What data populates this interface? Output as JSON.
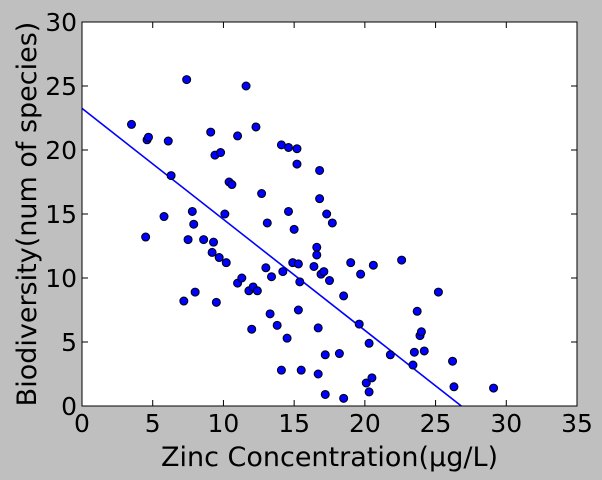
{
  "chart_data": {
    "type": "scatter",
    "title": "",
    "xlabel": "Zinc Concentration(µg/L)",
    "ylabel": "Biodiversity(num of species)",
    "xlim": [
      0,
      35
    ],
    "ylim": [
      0,
      30
    ],
    "xticks": [
      0,
      5,
      10,
      15,
      20,
      25,
      30,
      35
    ],
    "yticks": [
      0,
      5,
      10,
      15,
      20,
      25,
      30
    ],
    "grid": false,
    "point_color": "#0000ff",
    "line_color": "#0000ff",
    "background_color": "#bfbfbf",
    "plot_background": "#ffffff",
    "points": [
      [
        3.5,
        22.0
      ],
      [
        4.6,
        20.8
      ],
      [
        4.7,
        21.0
      ],
      [
        4.5,
        13.2
      ],
      [
        5.8,
        14.8
      ],
      [
        6.1,
        20.7
      ],
      [
        6.3,
        18.0
      ],
      [
        7.4,
        25.5
      ],
      [
        7.2,
        8.2
      ],
      [
        7.5,
        13.0
      ],
      [
        7.8,
        15.2
      ],
      [
        7.9,
        14.2
      ],
      [
        8.0,
        8.9
      ],
      [
        8.6,
        13.0
      ],
      [
        9.1,
        21.4
      ],
      [
        9.2,
        12.0
      ],
      [
        9.3,
        12.8
      ],
      [
        9.4,
        19.6
      ],
      [
        9.5,
        8.1
      ],
      [
        9.7,
        11.6
      ],
      [
        9.8,
        19.8
      ],
      [
        10.1,
        15.0
      ],
      [
        10.2,
        11.2
      ],
      [
        10.4,
        17.5
      ],
      [
        10.6,
        17.3
      ],
      [
        11.0,
        21.1
      ],
      [
        11.0,
        9.6
      ],
      [
        11.3,
        10.0
      ],
      [
        11.6,
        25.0
      ],
      [
        11.8,
        9.0
      ],
      [
        12.0,
        6.0
      ],
      [
        12.1,
        9.3
      ],
      [
        12.3,
        21.8
      ],
      [
        12.4,
        9.0
      ],
      [
        12.7,
        16.6
      ],
      [
        13.0,
        10.8
      ],
      [
        13.1,
        14.3
      ],
      [
        13.3,
        7.2
      ],
      [
        13.4,
        10.1
      ],
      [
        13.8,
        6.3
      ],
      [
        14.1,
        20.4
      ],
      [
        14.1,
        2.8
      ],
      [
        14.2,
        10.5
      ],
      [
        14.5,
        5.3
      ],
      [
        14.6,
        20.2
      ],
      [
        14.6,
        15.2
      ],
      [
        14.9,
        11.2
      ],
      [
        15.0,
        13.8
      ],
      [
        15.2,
        20.1
      ],
      [
        15.2,
        18.9
      ],
      [
        15.3,
        11.1
      ],
      [
        15.3,
        7.5
      ],
      [
        15.4,
        9.7
      ],
      [
        15.5,
        2.8
      ],
      [
        16.4,
        10.9
      ],
      [
        16.6,
        11.8
      ],
      [
        16.6,
        12.4
      ],
      [
        16.7,
        6.1
      ],
      [
        16.7,
        2.5
      ],
      [
        16.8,
        18.4
      ],
      [
        16.8,
        16.2
      ],
      [
        16.9,
        10.3
      ],
      [
        17.1,
        10.5
      ],
      [
        17.2,
        4.0
      ],
      [
        17.2,
        0.9
      ],
      [
        17.3,
        15.0
      ],
      [
        17.5,
        9.8
      ],
      [
        17.7,
        14.3
      ],
      [
        18.2,
        4.1
      ],
      [
        18.5,
        8.6
      ],
      [
        18.5,
        0.6
      ],
      [
        19.0,
        11.2
      ],
      [
        19.6,
        6.4
      ],
      [
        19.7,
        10.3
      ],
      [
        20.1,
        1.8
      ],
      [
        20.3,
        4.9
      ],
      [
        20.3,
        1.1
      ],
      [
        20.5,
        2.2
      ],
      [
        20.6,
        11.0
      ],
      [
        21.8,
        4.0
      ],
      [
        22.6,
        11.4
      ],
      [
        23.4,
        3.2
      ],
      [
        23.5,
        4.2
      ],
      [
        23.7,
        7.4
      ],
      [
        23.9,
        5.5
      ],
      [
        24.0,
        5.8
      ],
      [
        24.2,
        4.3
      ],
      [
        25.2,
        8.9
      ],
      [
        26.2,
        3.5
      ],
      [
        26.3,
        1.5
      ],
      [
        29.1,
        1.4
      ]
    ],
    "regression_line": {
      "slope": -0.867,
      "intercept": 23.25,
      "x_start": 0,
      "x_end": 26.82
    }
  }
}
